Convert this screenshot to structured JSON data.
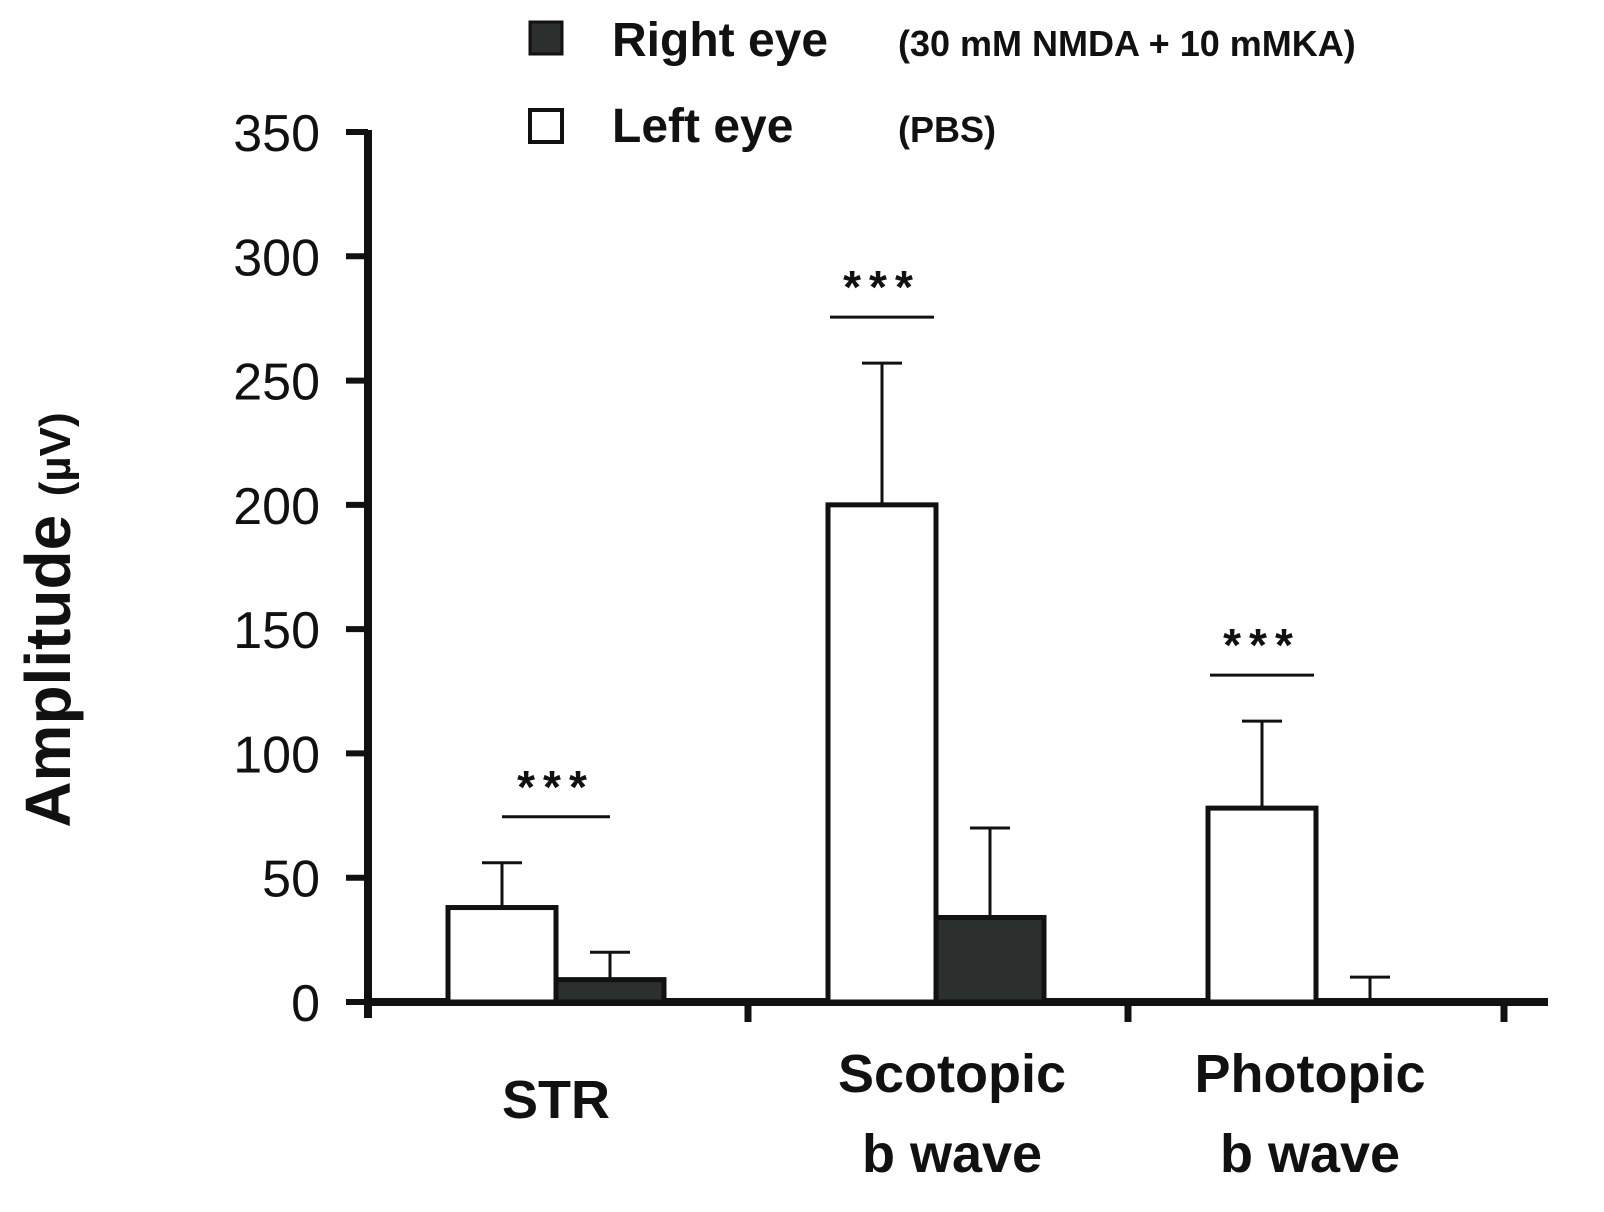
{
  "chart_data": {
    "type": "bar",
    "title": "",
    "xlabel": "",
    "ylabel": "Amplitude",
    "ylabel_unit": "(µV)",
    "ylim": [
      0,
      350
    ],
    "yticks": [
      0,
      50,
      100,
      150,
      200,
      250,
      300,
      350
    ],
    "grid": false,
    "legend_position": "top",
    "categories": [
      {
        "lines": [
          "STR"
        ]
      },
      {
        "lines": [
          "Scotopic",
          "b   wave"
        ]
      },
      {
        "lines": [
          "Photopic",
          "b   wave"
        ]
      }
    ],
    "series": [
      {
        "name": "Left eye",
        "note": "(PBS)",
        "color": "#ffffff",
        "values": [
          38,
          200,
          78
        ],
        "errors": [
          18,
          57,
          35
        ]
      },
      {
        "name": "Right eye",
        "note": "(30 mM NMDA + 10 mMKA)",
        "color": "#2b2f2d",
        "values": [
          9,
          34,
          0
        ],
        "errors": [
          11,
          36,
          10
        ]
      }
    ],
    "significance": [
      "***",
      "***",
      "***"
    ]
  }
}
